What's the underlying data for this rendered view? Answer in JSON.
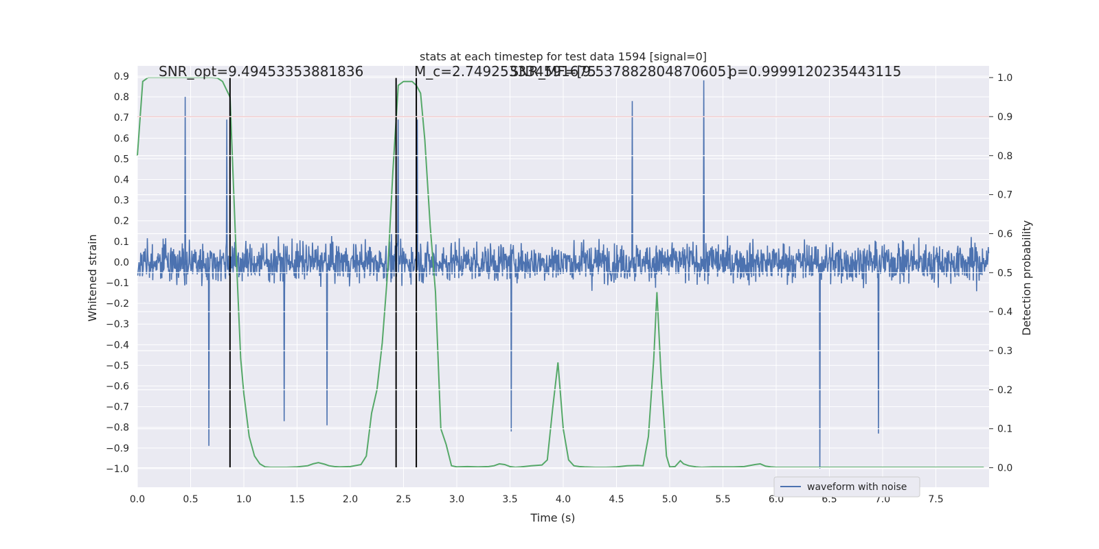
{
  "chart_data": {
    "type": "line",
    "title": "stats at each timestep for test data 1594 [signal=0]",
    "xlabel": "Time (s)",
    "ylabel_left": "Whitened strain",
    "ylabel_right": "Detection probability",
    "xlim": [
      0.0,
      8.0
    ],
    "ylim_left": [
      -1.09,
      0.95
    ],
    "ylim_right": [
      -0.05,
      1.03
    ],
    "x_ticks": [
      "0.0",
      "0.5",
      "1.0",
      "1.5",
      "2.0",
      "2.5",
      "3.0",
      "3.5",
      "4.0",
      "4.5",
      "5.0",
      "5.5",
      "6.0",
      "6.5",
      "7.0",
      "7.5"
    ],
    "y_ticks_left": [
      "0.9",
      "0.8",
      "0.7",
      "0.6",
      "0.5",
      "0.4",
      "0.3",
      "0.2",
      "0.1",
      "0.0",
      "−0.1",
      "−0.2",
      "−0.3",
      "−0.4",
      "−0.5",
      "−0.6",
      "−0.7",
      "−0.8",
      "−0.9",
      "−1.0"
    ],
    "y_ticks_right": [
      "1.0",
      "0.9",
      "0.8",
      "0.7",
      "0.6",
      "0.5",
      "0.4",
      "0.3",
      "0.2",
      "0.1",
      "0.0"
    ],
    "grid": true,
    "legend_position": "lower-right",
    "threshold": {
      "value": 0.9,
      "axis": "right",
      "color": "#c44e52"
    },
    "vertical_lines_x": [
      0.87,
      2.43,
      2.62
    ],
    "annotations": [
      {
        "text": "SNR_opt=9.49453353881836",
        "x": 0.2
      },
      {
        "text": "M_c=2.749253334591675",
        "x": 2.6
      },
      {
        "text": "SNR_MF=[9.537882804870605]",
        "x": 3.5
      },
      {
        "text": "p=0.9999120235443115",
        "x": 5.55
      }
    ],
    "series": [
      {
        "name": "waveform with noise",
        "color": "#4c72b0",
        "axis": "left",
        "style": "dense-noise",
        "n_samples": 2048,
        "duration": 8.0,
        "peaks": [
          {
            "x": 0.45,
            "y": 0.8
          },
          {
            "x": 0.67,
            "y": -0.89
          },
          {
            "x": 0.84,
            "y": 0.69
          },
          {
            "x": 1.38,
            "y": -0.77
          },
          {
            "x": 1.78,
            "y": -0.79
          },
          {
            "x": 2.45,
            "y": 0.69
          },
          {
            "x": 2.63,
            "y": 0.69
          },
          {
            "x": 3.51,
            "y": -0.82
          },
          {
            "x": 4.65,
            "y": 0.78
          },
          {
            "x": 5.32,
            "y": 0.88
          },
          {
            "x": 6.41,
            "y": -1.0
          },
          {
            "x": 6.96,
            "y": -0.83
          }
        ]
      },
      {
        "name": "",
        "color": "#55a868",
        "axis": "right",
        "x": [
          0.0,
          0.05,
          0.1,
          0.2,
          0.3,
          0.4,
          0.5,
          0.6,
          0.7,
          0.75,
          0.8,
          0.87,
          0.92,
          0.97,
          1.0,
          1.05,
          1.1,
          1.15,
          1.2,
          1.25,
          1.3,
          1.4,
          1.5,
          1.6,
          1.65,
          1.7,
          1.76,
          1.8,
          1.85,
          1.9,
          2.0,
          2.1,
          2.15,
          2.2,
          2.25,
          2.3,
          2.35,
          2.4,
          2.45,
          2.5,
          2.55,
          2.58,
          2.62,
          2.66,
          2.7,
          2.75,
          2.8,
          2.85,
          2.9,
          2.95,
          3.0,
          3.1,
          3.2,
          3.3,
          3.35,
          3.4,
          3.45,
          3.5,
          3.55,
          3.6,
          3.7,
          3.8,
          3.85,
          3.9,
          3.95,
          4.0,
          4.05,
          4.1,
          4.15,
          4.2,
          4.3,
          4.4,
          4.5,
          4.6,
          4.7,
          4.75,
          4.8,
          4.85,
          4.88,
          4.92,
          4.97,
          5.0,
          5.05,
          5.1,
          5.13,
          5.18,
          5.25,
          5.3,
          5.4,
          5.5,
          5.6,
          5.7,
          5.8,
          5.85,
          5.9,
          5.95,
          6.0,
          6.1,
          6.2,
          6.3,
          6.4,
          6.5,
          6.6,
          6.7,
          6.8,
          6.9,
          7.0,
          7.1,
          7.2,
          7.3,
          7.4,
          7.5,
          7.6,
          7.7,
          7.8,
          7.9,
          7.95
        ],
        "values": [
          0.8,
          0.99,
          1.0,
          1.0,
          1.0,
          1.0,
          1.0,
          1.0,
          1.0,
          0.999,
          0.99,
          0.95,
          0.6,
          0.28,
          0.19,
          0.08,
          0.03,
          0.01,
          0.002,
          0.001,
          0.001,
          0.001,
          0.002,
          0.005,
          0.01,
          0.013,
          0.009,
          0.005,
          0.003,
          0.002,
          0.003,
          0.008,
          0.03,
          0.14,
          0.2,
          0.32,
          0.5,
          0.76,
          0.98,
          0.99,
          0.99,
          0.99,
          0.98,
          0.96,
          0.84,
          0.62,
          0.45,
          0.1,
          0.06,
          0.005,
          0.002,
          0.003,
          0.002,
          0.003,
          0.005,
          0.01,
          0.008,
          0.003,
          0.001,
          0.002,
          0.005,
          0.007,
          0.02,
          0.15,
          0.27,
          0.1,
          0.02,
          0.005,
          0.003,
          0.002,
          0.001,
          0.001,
          0.002,
          0.005,
          0.006,
          0.005,
          0.08,
          0.28,
          0.45,
          0.23,
          0.03,
          0.002,
          0.003,
          0.018,
          0.01,
          0.005,
          0.002,
          0.001,
          0.002,
          0.002,
          0.002,
          0.003,
          0.008,
          0.01,
          0.004,
          0.002,
          0.001,
          0.001,
          0.001,
          0.001,
          0.001,
          0.001,
          0.001,
          0.001,
          0.001,
          0.001,
          0.001,
          0.001,
          0.001,
          0.001,
          0.001,
          0.001,
          0.001,
          0.001,
          0.001,
          0.001,
          0.001
        ]
      }
    ]
  }
}
